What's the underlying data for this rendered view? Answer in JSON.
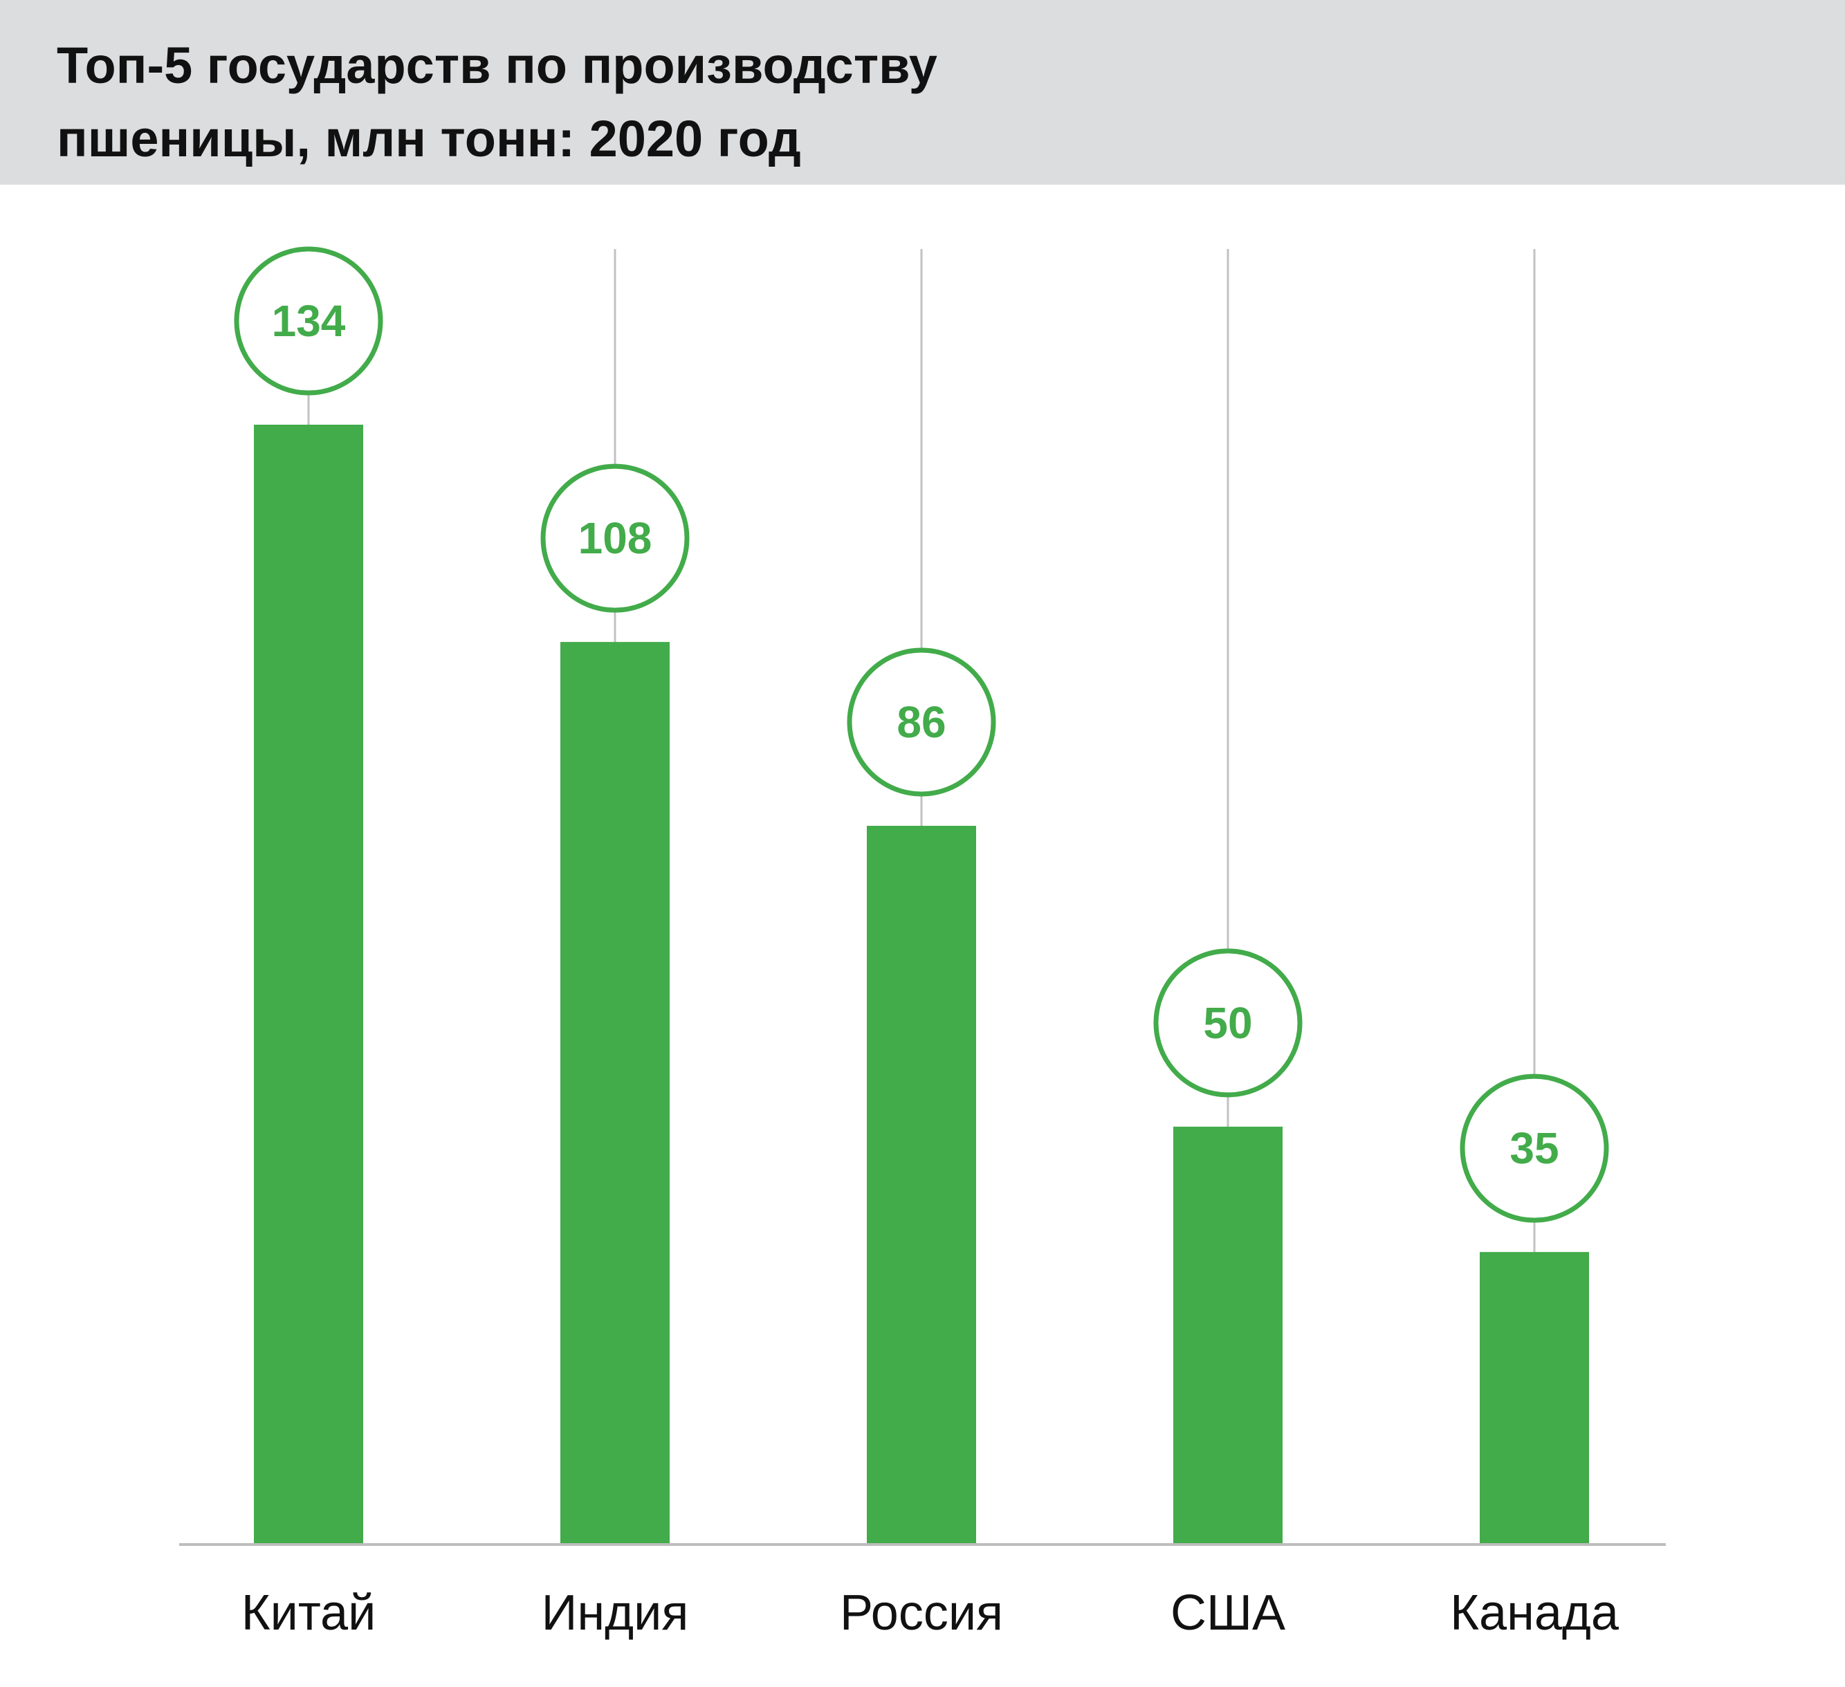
{
  "title": "Топ-5 государств по производству пшеницы, млн тонн: 2020 год",
  "colors": {
    "header_bg": "#dcdddf",
    "bar": "#42ab4a",
    "value_text": "#42ab4a",
    "guide_line": "#c2c2c2",
    "axis_line": "#bdbdbd",
    "label_text": "#111111"
  },
  "chart_data": {
    "type": "bar",
    "title": "Топ-5 государств по производству пшеницы, млн тонн: 2020 год",
    "categories": [
      "Китай",
      "Индия",
      "Россия",
      "США",
      "Канада"
    ],
    "values": [
      134,
      108,
      86,
      50,
      35
    ],
    "xlabel": "",
    "ylabel": "",
    "ylim": [
      0,
      134
    ],
    "grid": false,
    "legend": "none"
  }
}
